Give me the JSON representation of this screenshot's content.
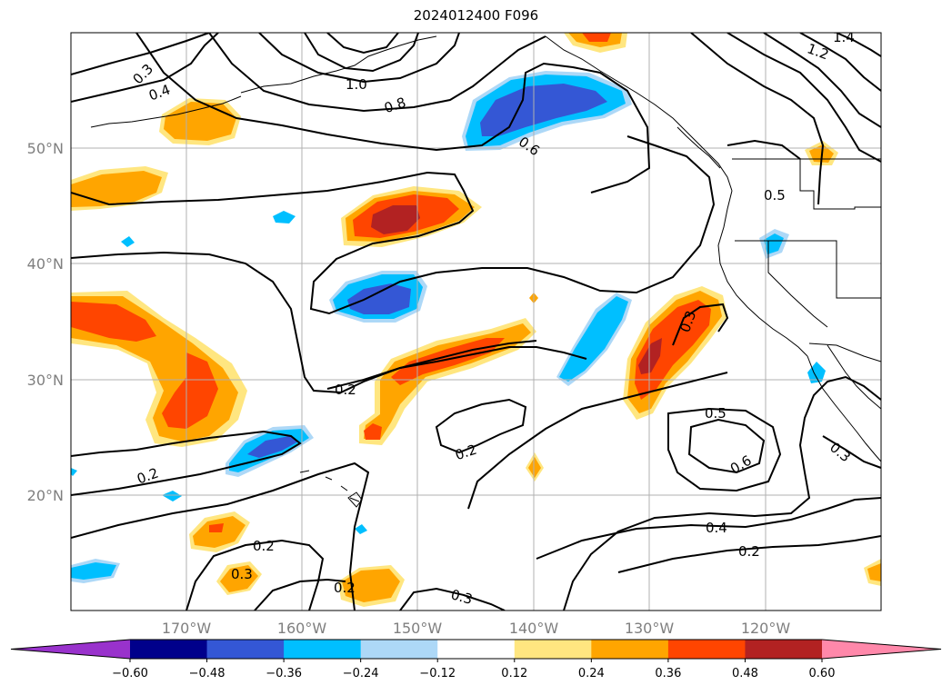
{
  "title": "2024012400 F096",
  "lat_labels": [
    "20°N",
    "30°N",
    "40°N",
    "50°N"
  ],
  "lon_labels": [
    "170°W",
    "160°W",
    "150°W",
    "140°W",
    "130°W",
    "120°W"
  ],
  "colorbar": {
    "tick_labels": [
      "−0.60",
      "−0.48",
      "−0.36",
      "−0.24",
      "−0.12",
      "0.12",
      "0.24",
      "0.36",
      "0.48",
      "0.60"
    ],
    "colors": [
      "#9932cc",
      "#00008b",
      "#3457d5",
      "#00bfff",
      "#add8f7",
      "#ffffff",
      "#ffe680",
      "#ffa500",
      "#ff4500",
      "#b22222",
      "#ff88aa"
    ]
  },
  "contour_labels": [
    "0.3",
    "0.4",
    "1.0",
    "0.8",
    "0.6",
    "0.5",
    "1.2",
    "1.4",
    "0.3",
    "0.2",
    "0.2",
    "0.5",
    "0.6",
    "0.4",
    "0.2",
    "0.3",
    "0.2",
    "0.3",
    "0.2",
    "0.3"
  ],
  "colors": {
    "positive_light": "#ffe680",
    "positive_mid": "#ffa500",
    "positive_strong": "#ff4500",
    "positive_max": "#b22222",
    "negative_light": "#add8f7",
    "negative_mid": "#00bfff",
    "negative_strong": "#3457d5",
    "grid": "#b0b0b0"
  }
}
